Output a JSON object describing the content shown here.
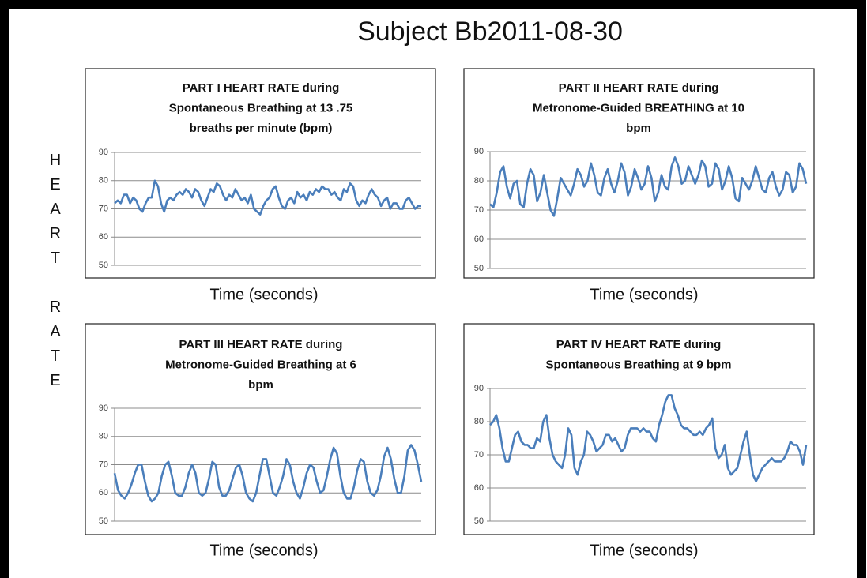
{
  "title": "Subject Bb2011-08-30",
  "ylabel": "HEART RATE",
  "chart_data": [
    {
      "type": "line",
      "title": [
        "PART I HEART RATE during",
        "Spontaneous Breathing at 13 .75",
        "breaths per minute (bpm)"
      ],
      "xlabel": "Time (seconds)",
      "color": "#4a7ebb",
      "ylim": [
        50,
        90
      ],
      "yticks": [
        50,
        60,
        70,
        80,
        90
      ],
      "grid": true,
      "values": [
        72,
        73,
        72,
        75,
        75,
        72,
        74,
        73,
        70,
        69,
        72,
        74,
        74,
        80,
        78,
        72,
        69,
        73,
        74,
        73,
        75,
        76,
        75,
        77,
        76,
        74,
        77,
        76,
        73,
        71,
        74,
        77,
        76,
        79,
        78,
        75,
        73,
        75,
        74,
        77,
        75,
        73,
        74,
        72,
        75,
        70,
        69,
        68,
        71,
        73,
        74,
        77,
        78,
        74,
        71,
        70,
        73,
        74,
        72,
        76,
        74,
        75,
        73,
        76,
        75,
        77,
        76,
        78,
        77,
        77,
        75,
        76,
        74,
        73,
        77,
        76,
        79,
        78,
        73,
        71,
        73,
        72,
        75,
        77,
        75,
        74,
        71,
        73,
        74,
        70,
        72,
        72,
        70,
        70,
        73,
        74,
        72,
        70,
        71,
        71
      ]
    },
    {
      "type": "line",
      "title": [
        "PART II HEART RATE during",
        "Metronome-Guided BREATHING at  10",
        "bpm"
      ],
      "xlabel": "Time (seconds)",
      "color": "#4a7ebb",
      "ylim": [
        50,
        90
      ],
      "yticks": [
        50,
        60,
        70,
        80,
        90
      ],
      "grid": true,
      "values": [
        72,
        71,
        76,
        83,
        85,
        78,
        74,
        79,
        80,
        72,
        71,
        79,
        84,
        82,
        73,
        76,
        82,
        76,
        70,
        68,
        74,
        81,
        79,
        77,
        75,
        79,
        84,
        82,
        78,
        80,
        86,
        82,
        76,
        75,
        81,
        84,
        79,
        76,
        80,
        86,
        83,
        75,
        78,
        84,
        81,
        77,
        79,
        85,
        81,
        73,
        76,
        82,
        78,
        77,
        85,
        88,
        85,
        79,
        80,
        85,
        82,
        79,
        82,
        87,
        85,
        78,
        79,
        86,
        84,
        77,
        80,
        85,
        81,
        74,
        73,
        81,
        79,
        77,
        80,
        85,
        81,
        77,
        76,
        81,
        83,
        78,
        75,
        77,
        83,
        82,
        76,
        78,
        86,
        84,
        79
      ]
    },
    {
      "type": "line",
      "title": [
        "PART III HEART RATE during",
        "Metronome-Guided Breathing at  6",
        "bpm"
      ],
      "xlabel": "Time (seconds)",
      "color": "#4a7ebb",
      "ylim": [
        50,
        90
      ],
      "yticks": [
        50,
        60,
        70,
        80,
        90
      ],
      "grid": true,
      "values": [
        67,
        61,
        59,
        58,
        60,
        63,
        67,
        70,
        70,
        64,
        59,
        57,
        58,
        60,
        66,
        70,
        71,
        66,
        60,
        59,
        59,
        62,
        67,
        70,
        67,
        60,
        59,
        60,
        65,
        71,
        70,
        62,
        59,
        59,
        61,
        65,
        69,
        70,
        66,
        60,
        58,
        57,
        60,
        66,
        72,
        72,
        66,
        60,
        59,
        62,
        66,
        72,
        70,
        64,
        60,
        58,
        62,
        67,
        70,
        69,
        64,
        60,
        61,
        66,
        72,
        76,
        74,
        66,
        60,
        58,
        58,
        62,
        68,
        72,
        71,
        64,
        60,
        59,
        61,
        66,
        73,
        76,
        72,
        65,
        60,
        60,
        66,
        75,
        77,
        75,
        70,
        64
      ]
    },
    {
      "type": "line",
      "title": [
        "PART IV HEART RATE during",
        "Spontaneous Breathing at 9  bpm"
      ],
      "xlabel": "Time (seconds)",
      "color": "#4a7ebb",
      "ylim": [
        50,
        90
      ],
      "yticks": [
        50,
        60,
        70,
        80,
        90
      ],
      "grid": true,
      "values": [
        79,
        80,
        82,
        78,
        72,
        68,
        68,
        72,
        76,
        77,
        74,
        73,
        73,
        72,
        72,
        75,
        74,
        80,
        82,
        75,
        70,
        68,
        67,
        66,
        70,
        78,
        76,
        66,
        64,
        68,
        70,
        77,
        76,
        74,
        71,
        72,
        73,
        76,
        76,
        74,
        75,
        73,
        71,
        72,
        76,
        78,
        78,
        78,
        77,
        78,
        77,
        77,
        75,
        74,
        79,
        82,
        86,
        88,
        88,
        84,
        82,
        79,
        78,
        78,
        77,
        76,
        76,
        77,
        76,
        78,
        79,
        81,
        72,
        69,
        70,
        73,
        66,
        64,
        65,
        66,
        70,
        74,
        77,
        70,
        64,
        62,
        64,
        66,
        67,
        68,
        69,
        68,
        68,
        68,
        69,
        71,
        74,
        73,
        73,
        71,
        67,
        73
      ]
    }
  ]
}
